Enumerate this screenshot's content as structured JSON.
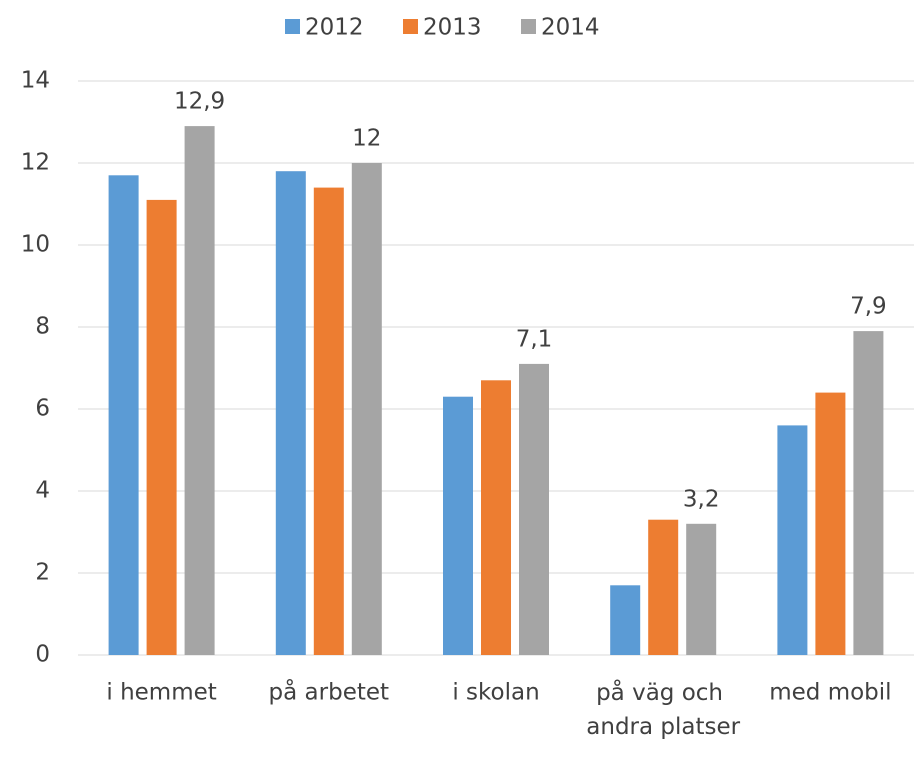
{
  "chart_data": {
    "type": "bar",
    "categories": [
      "i hemmet",
      "på arbetet",
      "i skolan",
      "på väg och andra platser",
      "med mobil"
    ],
    "series": [
      {
        "name": "2012",
        "color": "#5b9bd5",
        "values": [
          11.7,
          11.8,
          6.3,
          1.7,
          5.6
        ]
      },
      {
        "name": "2013",
        "color": "#ed7d31",
        "values": [
          11.1,
          11.4,
          6.7,
          3.3,
          6.4
        ]
      },
      {
        "name": "2014",
        "color": "#a5a5a5",
        "values": [
          12.9,
          12,
          7.1,
          3.2,
          7.9
        ],
        "value_labels": [
          "12,9",
          "12",
          "7,1",
          "3,2",
          "7,9"
        ]
      }
    ],
    "ylim": [
      0,
      14
    ],
    "yticks": [
      0,
      2,
      4,
      6,
      8,
      10,
      12,
      14
    ],
    "grid": true,
    "legend": "top"
  }
}
